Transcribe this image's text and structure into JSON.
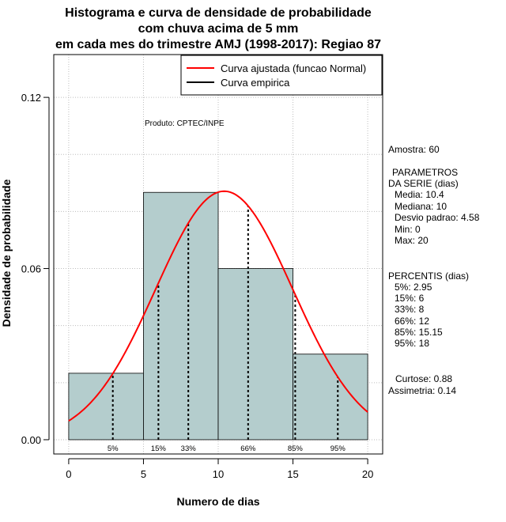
{
  "chart_data": {
    "type": "histogram",
    "title_lines": [
      "Histograma e curva de densidade de probabilidade",
      "com chuva acima de 5 mm",
      "em cada mes do trimestre AMJ (1998-2017): Regiao 87"
    ],
    "xlabel": "Numero de dias",
    "ylabel": "Densidade de probabilidade",
    "xlim": [
      -1,
      21
    ],
    "ylim": [
      -0.005,
      0.135
    ],
    "x_ticks": [
      "0",
      "5",
      "10",
      "15",
      "20"
    ],
    "x_tick_values": [
      0,
      5,
      10,
      15,
      20
    ],
    "y_ticks": [
      "0.00",
      "0.06",
      "0.12"
    ],
    "y_tick_values": [
      0,
      0.06,
      0.12
    ],
    "grid": true,
    "bins": [
      {
        "x0": 0,
        "x1": 5,
        "density": 0.0233
      },
      {
        "x0": 5,
        "x1": 10,
        "density": 0.0867
      },
      {
        "x0": 10,
        "x1": 15,
        "density": 0.06
      },
      {
        "x0": 15,
        "x1": 20,
        "density": 0.03
      }
    ],
    "bar_color": "#b4cdcd",
    "normal_curve": {
      "mean": 10.4,
      "sd": 4.58,
      "color": "#ff0000"
    },
    "legend": {
      "position": "top-right",
      "entries": [
        {
          "label": "Curva ajustada (funcao Normal)",
          "color": "#ff0000"
        },
        {
          "label": "Curva empirica",
          "color": "#000000"
        }
      ]
    },
    "percentile_lines": [
      {
        "label": "5%",
        "x": 2.95
      },
      {
        "label": "15%",
        "x": 6
      },
      {
        "label": "33%",
        "x": 8
      },
      {
        "label": "66%",
        "x": 12
      },
      {
        "label": "85%",
        "x": 15.15
      },
      {
        "label": "95%",
        "x": 18
      }
    ],
    "credit": "Produto: CPTEC/INPE"
  },
  "stats_panel": {
    "amostra": "Amostra: 60",
    "parametros_title_1": "PARAMETROS",
    "parametros_title_2": "DA SERIE (dias)",
    "parametros": [
      "Media: 10.4",
      "Mediana: 10",
      "Desvio padrao: 4.58",
      "Min: 0",
      "Max: 20"
    ],
    "percentis_title": "PERCENTIS (dias)",
    "percentis": [
      "5%: 2.95",
      "15%: 6",
      "33%: 8",
      "66%: 12",
      "85%: 15.15",
      "95%: 18"
    ],
    "curtose": "Curtose: 0.88",
    "assimetria": "Assimetria: 0.14"
  }
}
